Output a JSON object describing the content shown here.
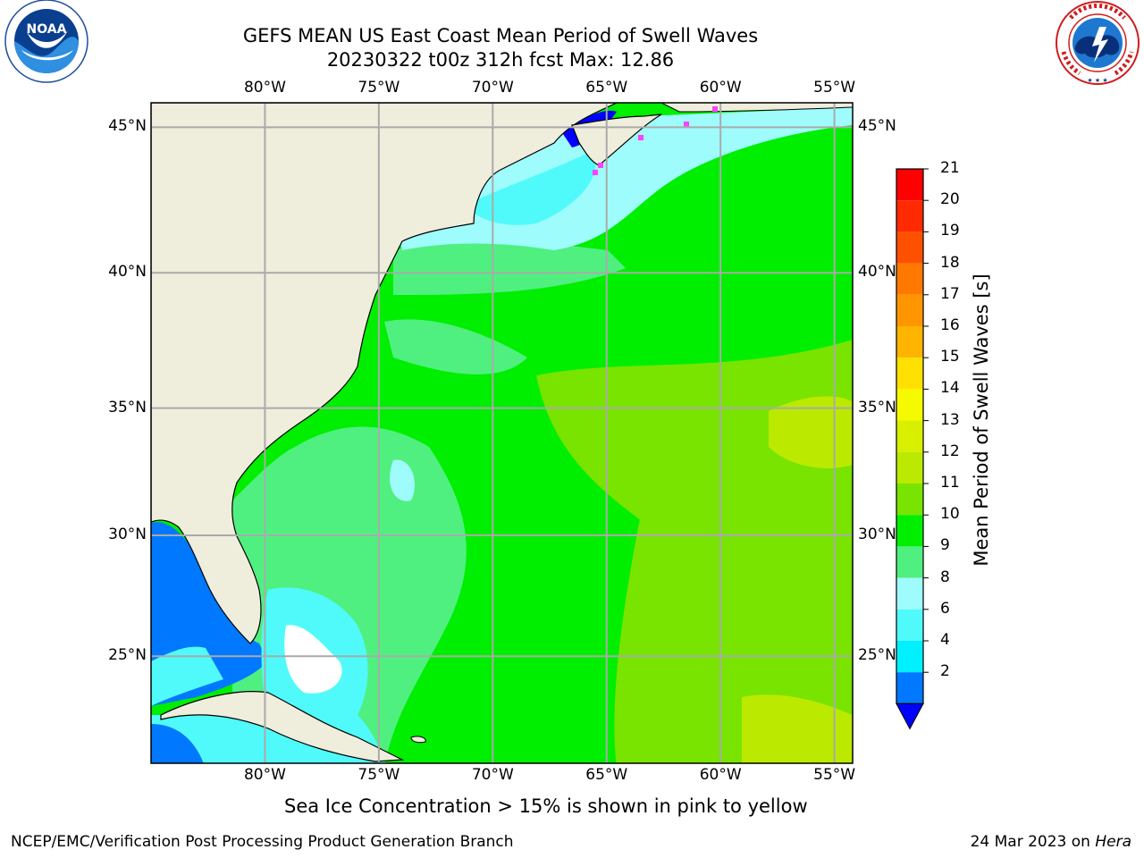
{
  "title": {
    "line1": "GEFS MEAN US East Coast Mean Period of Swell Waves",
    "line2": "20230322 t00z 312h fcst   Max: 12.86"
  },
  "logos": {
    "left": {
      "name": "noaa-logo",
      "text": "NOAA",
      "ring_text": "NATIONAL OCEANIC AND ATMOSPHERIC ADMINISTRATION · U.S. DEPARTMENT OF COMMERCE"
    },
    "right": {
      "name": "nws-logo",
      "ring_text": "NATIONAL WEATHER SERVICE"
    }
  },
  "map": {
    "lon_ticks": [
      "80°W",
      "75°W",
      "70°W",
      "65°W",
      "60°W",
      "55°W"
    ],
    "lat_ticks": [
      "45°N",
      "40°N",
      "35°N",
      "30°N",
      "25°N"
    ],
    "lon_values": [
      -80,
      -75,
      -70,
      -65,
      -60,
      -55
    ],
    "lat_values": [
      45,
      40,
      35,
      30,
      25
    ],
    "extent": {
      "lon": [
        -85,
        -54.2
      ],
      "lat": [
        20.4,
        45.8
      ]
    },
    "land_color": "#efeddc",
    "grid_color": "#aaaaaa"
  },
  "colorbar": {
    "title": "Mean Period of Swell Waves [s]",
    "labels": [
      "21",
      "20",
      "19",
      "18",
      "17",
      "16",
      "15",
      "14",
      "13",
      "12",
      "11",
      "10",
      "9",
      "8",
      "6",
      "4",
      "2"
    ],
    "colors": [
      "#ff0000",
      "#ff2a00",
      "#ff5000",
      "#ff7800",
      "#ff9600",
      "#ffb400",
      "#ffe000",
      "#f6fa00",
      "#d8f000",
      "#bbea00",
      "#78e400",
      "#00ee00",
      "#50f080",
      "#9ffcfc",
      "#50fafa",
      "#00f0ff",
      "#0078ff",
      "#0000ff"
    ],
    "extend": "min"
  },
  "note": "Sea Ice Concentration > 15% is shown in pink to yellow",
  "footer": {
    "left": "NCEP/EMC/Verification Post Processing Product Generation Branch",
    "right_prefix": "24 Mar 2023 on ",
    "right_machine": "Hera"
  }
}
